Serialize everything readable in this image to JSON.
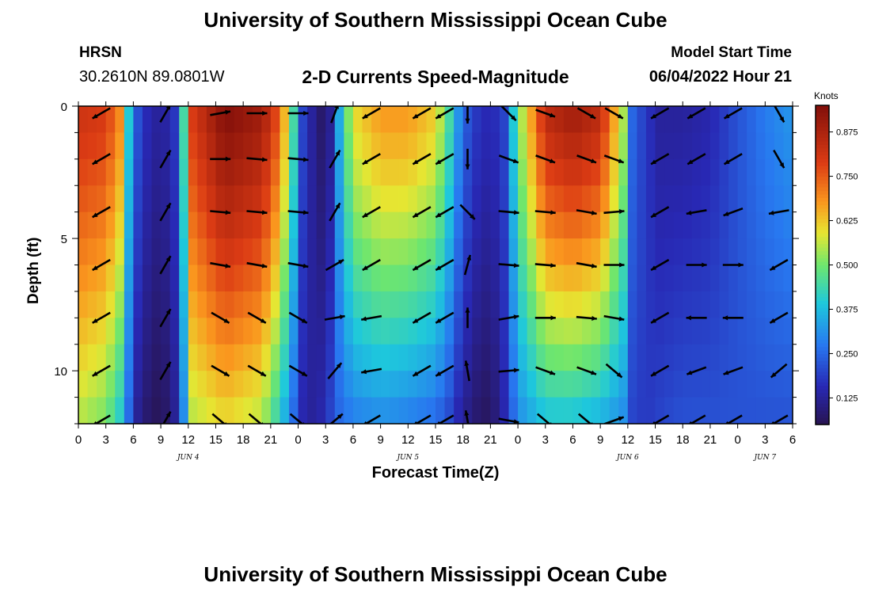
{
  "header": {
    "title": "University of Southern Mississippi Ocean Cube",
    "station": "HRSN",
    "coordinates": "30.2610N  89.0801W",
    "plot_title": "2-D Currents Speed-Magnitude",
    "model_start_label": "Model Start Time",
    "model_start_value": "06/04/2022 Hour 21"
  },
  "footer": {
    "title": "University of Southern Mississippi Ocean Cube"
  },
  "colorbar": {
    "unit": "Knots",
    "min": 0.05,
    "max": 0.95,
    "ticks": [
      "0.125",
      "0.250",
      "0.375",
      "0.500",
      "0.625",
      "0.750",
      "0.875"
    ],
    "tick_values": [
      0.125,
      0.25,
      0.375,
      0.5,
      0.625,
      0.75,
      0.875
    ],
    "colormap": "jet"
  },
  "chart_data": {
    "type": "heatmap",
    "xlabel": "Forecast Time(Z)",
    "ylabel": "Depth (ft)",
    "x_range_hours": [
      0,
      78
    ],
    "y_range_ft": [
      0,
      12
    ],
    "y_inverted": true,
    "x_tick_labels": [
      "0",
      "3",
      "6",
      "9",
      "12",
      "15",
      "18",
      "21",
      "0",
      "3",
      "6",
      "9",
      "12",
      "15",
      "18",
      "21",
      "0",
      "3",
      "6",
      "9",
      "12",
      "15",
      "18",
      "21",
      "0",
      "3",
      "6"
    ],
    "y_tick_labels": [
      "0",
      "5",
      "10"
    ],
    "y_tick_values": [
      0,
      5,
      10
    ],
    "date_labels": [
      {
        "text": "JUN 4",
        "hour": 12
      },
      {
        "text": "JUN 5",
        "hour": 36
      },
      {
        "text": "JUN 6",
        "hour": 60
      },
      {
        "text": "JUN 7",
        "hour": 75
      }
    ],
    "speed_profile": {
      "description_units": "knots",
      "surface_hours": [
        0,
        3,
        4.5,
        5.5,
        6.5,
        7.5,
        9,
        10.5,
        11.5,
        12.5,
        16,
        20,
        22,
        23.5,
        24.5,
        26,
        26.5,
        27.5,
        28.5,
        30,
        33,
        36,
        39,
        40.5,
        42,
        43.5,
        45,
        46.5,
        48,
        51,
        54,
        57,
        59.5,
        60.5,
        62,
        63.5,
        66,
        69,
        72,
        75,
        78
      ],
      "surface_speed": [
        0.82,
        0.8,
        0.7,
        0.4,
        0.22,
        0.16,
        0.12,
        0.18,
        0.45,
        0.8,
        0.95,
        0.9,
        0.75,
        0.45,
        0.2,
        0.1,
        0.08,
        0.12,
        0.35,
        0.6,
        0.68,
        0.68,
        0.62,
        0.45,
        0.25,
        0.18,
        0.15,
        0.2,
        0.5,
        0.85,
        0.9,
        0.85,
        0.55,
        0.25,
        0.18,
        0.13,
        0.13,
        0.15,
        0.22,
        0.28,
        0.32
      ],
      "bottom_hours": [
        0,
        3,
        4.5,
        5.5,
        6.5,
        7.5,
        9,
        10.5,
        11.5,
        12.5,
        16,
        20,
        22,
        23.5,
        24.5,
        26,
        26.5,
        27.5,
        28.5,
        30,
        33,
        36,
        39,
        40.5,
        42,
        43.5,
        45,
        46.5,
        48,
        51,
        54,
        57,
        59.5,
        60.5,
        62,
        63.5,
        66,
        69,
        72,
        75,
        78
      ],
      "bottom_speed": [
        0.55,
        0.5,
        0.4,
        0.25,
        0.12,
        0.08,
        0.05,
        0.12,
        0.3,
        0.55,
        0.6,
        0.55,
        0.4,
        0.25,
        0.15,
        0.12,
        0.15,
        0.2,
        0.25,
        0.28,
        0.3,
        0.28,
        0.25,
        0.2,
        0.12,
        0.08,
        0.06,
        0.15,
        0.3,
        0.38,
        0.38,
        0.35,
        0.3,
        0.2,
        0.18,
        0.2,
        0.22,
        0.22,
        0.22,
        0.22,
        0.22
      ]
    },
    "vectors": {
      "depth_rows_ft": [
        0,
        2,
        4,
        6,
        8,
        10,
        12
      ],
      "hours": [
        2.5,
        9.5,
        15.5,
        19.5,
        24,
        28,
        32,
        37.5,
        40,
        42.5,
        47,
        51,
        55.5,
        58.5,
        63.5,
        67.5,
        71.5,
        76.5
      ],
      "angles_deg": [
        [
          -150,
          60,
          10,
          0,
          0,
          70,
          -150,
          -150,
          -150,
          -90,
          -45,
          -20,
          -30,
          -30,
          -150,
          -150,
          -150,
          -60
        ],
        [
          -150,
          60,
          0,
          -5,
          -5,
          60,
          -150,
          -150,
          -150,
          -90,
          -20,
          -20,
          -20,
          -20,
          -150,
          -150,
          -150,
          -60
        ],
        [
          -150,
          60,
          -5,
          -5,
          -5,
          60,
          -150,
          -150,
          -150,
          -45,
          -5,
          -5,
          -10,
          5,
          -150,
          -170,
          -160,
          -170
        ],
        [
          -150,
          60,
          -10,
          -10,
          -10,
          30,
          -150,
          -150,
          -150,
          75,
          -5,
          -5,
          -10,
          0,
          -150,
          0,
          0,
          -150
        ],
        [
          -150,
          60,
          -30,
          -30,
          -30,
          10,
          -170,
          -150,
          -150,
          90,
          10,
          0,
          -5,
          -10,
          -150,
          180,
          180,
          -150
        ],
        [
          -150,
          60,
          -30,
          -30,
          -30,
          50,
          -170,
          -150,
          -150,
          100,
          5,
          -20,
          -20,
          -40,
          -150,
          -160,
          -160,
          -140
        ],
        [
          -150,
          60,
          -40,
          -40,
          -40,
          40,
          -150,
          -150,
          -150,
          100,
          -10,
          -40,
          -40,
          20,
          -150,
          -150,
          -150,
          -150
        ]
      ]
    }
  }
}
